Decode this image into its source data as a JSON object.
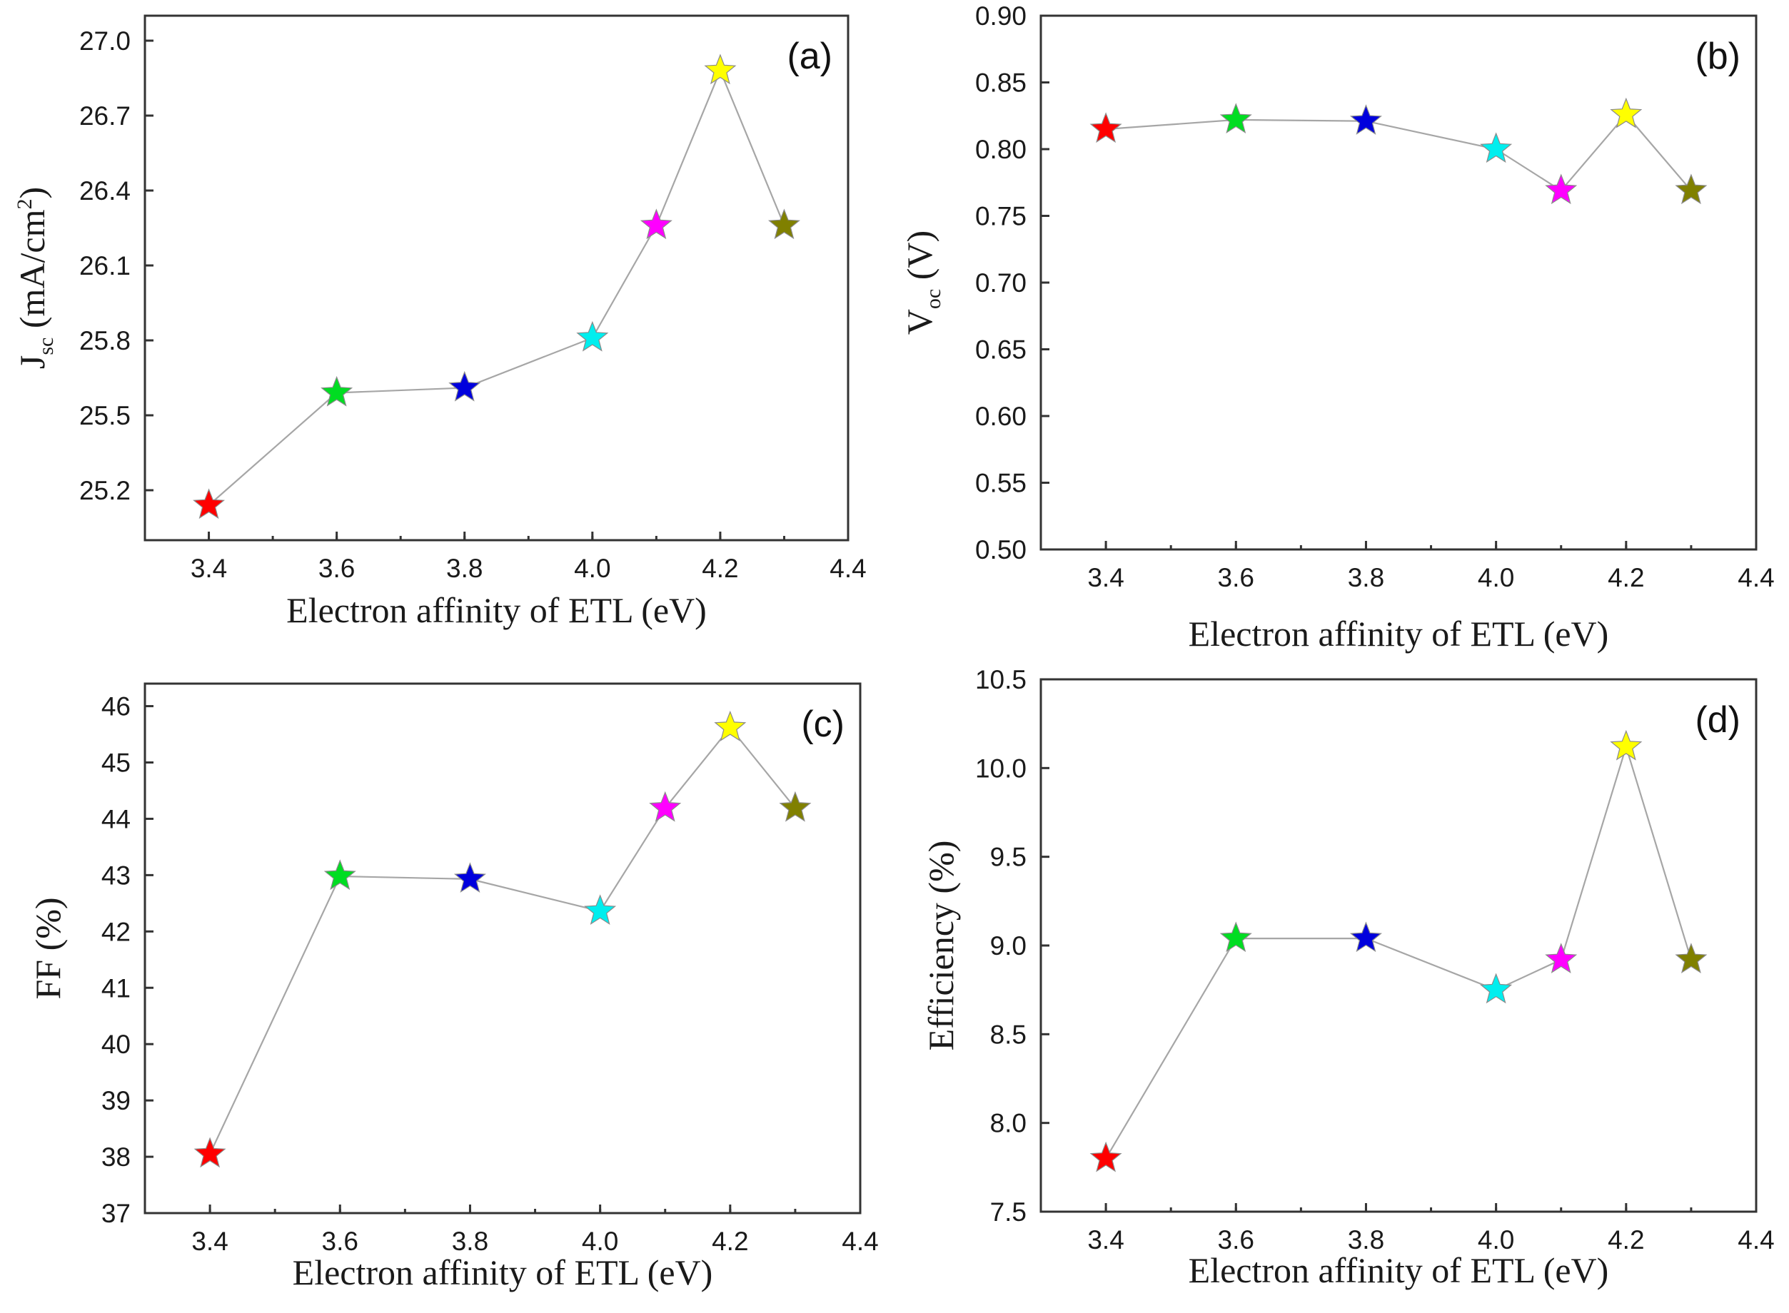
{
  "colors": {
    "series_markers": [
      "#ff0000",
      "#00dd22",
      "#0000dd",
      "#00eeee",
      "#ff00ff",
      "#ffff00",
      "#808000"
    ],
    "connector_line": "#a6a6a6",
    "axes": "#333333"
  },
  "marker_icon": "star-icon",
  "chart_data": [
    {
      "type": "line",
      "panel": "(a)",
      "xlabel": "Electron affinity of ETL (eV)",
      "ylabel": {
        "main": "J",
        "sub": "sc",
        "unit": " (mA/cm",
        "sup": "2",
        "close": ")"
      },
      "x": [
        3.4,
        3.6,
        3.8,
        4.0,
        4.1,
        4.2,
        4.3
      ],
      "y": [
        25.14,
        25.59,
        25.61,
        25.81,
        26.26,
        26.88,
        26.26
      ],
      "xlim": [
        3.3,
        4.4
      ],
      "ylim": [
        25.0,
        27.1
      ],
      "xticks": [
        "3.4",
        "3.6",
        "3.8",
        "4.0",
        "4.2",
        "4.4"
      ],
      "yticks": [
        "25.2",
        "25.5",
        "25.8",
        "26.1",
        "26.4",
        "26.7",
        "27.0"
      ]
    },
    {
      "type": "line",
      "panel": "(b)",
      "xlabel": "Electron affinity of ETL (eV)",
      "ylabel": {
        "main": "V",
        "sub": "oc",
        "unit": " (V)",
        "sup": "",
        "close": ""
      },
      "x": [
        3.4,
        3.6,
        3.8,
        4.0,
        4.1,
        4.2,
        4.3
      ],
      "y": [
        0.815,
        0.822,
        0.821,
        0.8,
        0.769,
        0.826,
        0.769
      ],
      "xlim": [
        3.3,
        4.4
      ],
      "ylim": [
        0.5,
        0.9
      ],
      "xticks": [
        "3.4",
        "3.6",
        "3.8",
        "4.0",
        "4.2",
        "4.4"
      ],
      "yticks": [
        "0.50",
        "0.55",
        "0.60",
        "0.65",
        "0.70",
        "0.75",
        "0.80",
        "0.85",
        "0.90"
      ]
    },
    {
      "type": "line",
      "panel": "(c)",
      "xlabel": "Electron affinity of ETL (eV)",
      "ylabel": {
        "main": "FF (%)",
        "sub": "",
        "unit": "",
        "sup": "",
        "close": ""
      },
      "x": [
        3.4,
        3.6,
        3.8,
        4.0,
        4.1,
        4.2,
        4.3
      ],
      "y": [
        38.05,
        42.98,
        42.93,
        42.36,
        44.19,
        45.62,
        44.19
      ],
      "xlim": [
        3.3,
        4.4
      ],
      "ylim": [
        37.0,
        46.4
      ],
      "xticks": [
        "3.4",
        "3.6",
        "3.8",
        "4.0",
        "4.2",
        "4.4"
      ],
      "yticks": [
        "37",
        "38",
        "39",
        "40",
        "41",
        "42",
        "43",
        "44",
        "45",
        "46"
      ]
    },
    {
      "type": "line",
      "panel": "(d)",
      "xlabel": "Electron affinity of ETL (eV)",
      "ylabel": {
        "main": "Efficiency (%)",
        "sub": "",
        "unit": "",
        "sup": "",
        "close": ""
      },
      "x": [
        3.4,
        3.6,
        3.8,
        4.0,
        4.1,
        4.2,
        4.3
      ],
      "y": [
        7.8,
        9.04,
        9.04,
        8.75,
        8.92,
        10.12,
        8.92
      ],
      "xlim": [
        3.3,
        4.4
      ],
      "ylim": [
        7.5,
        10.5
      ],
      "xticks": [
        "3.4",
        "3.6",
        "3.8",
        "4.0",
        "4.2",
        "4.4"
      ],
      "yticks": [
        "7.5",
        "8.0",
        "8.5",
        "9.0",
        "9.5",
        "10.0",
        "10.5"
      ]
    }
  ]
}
